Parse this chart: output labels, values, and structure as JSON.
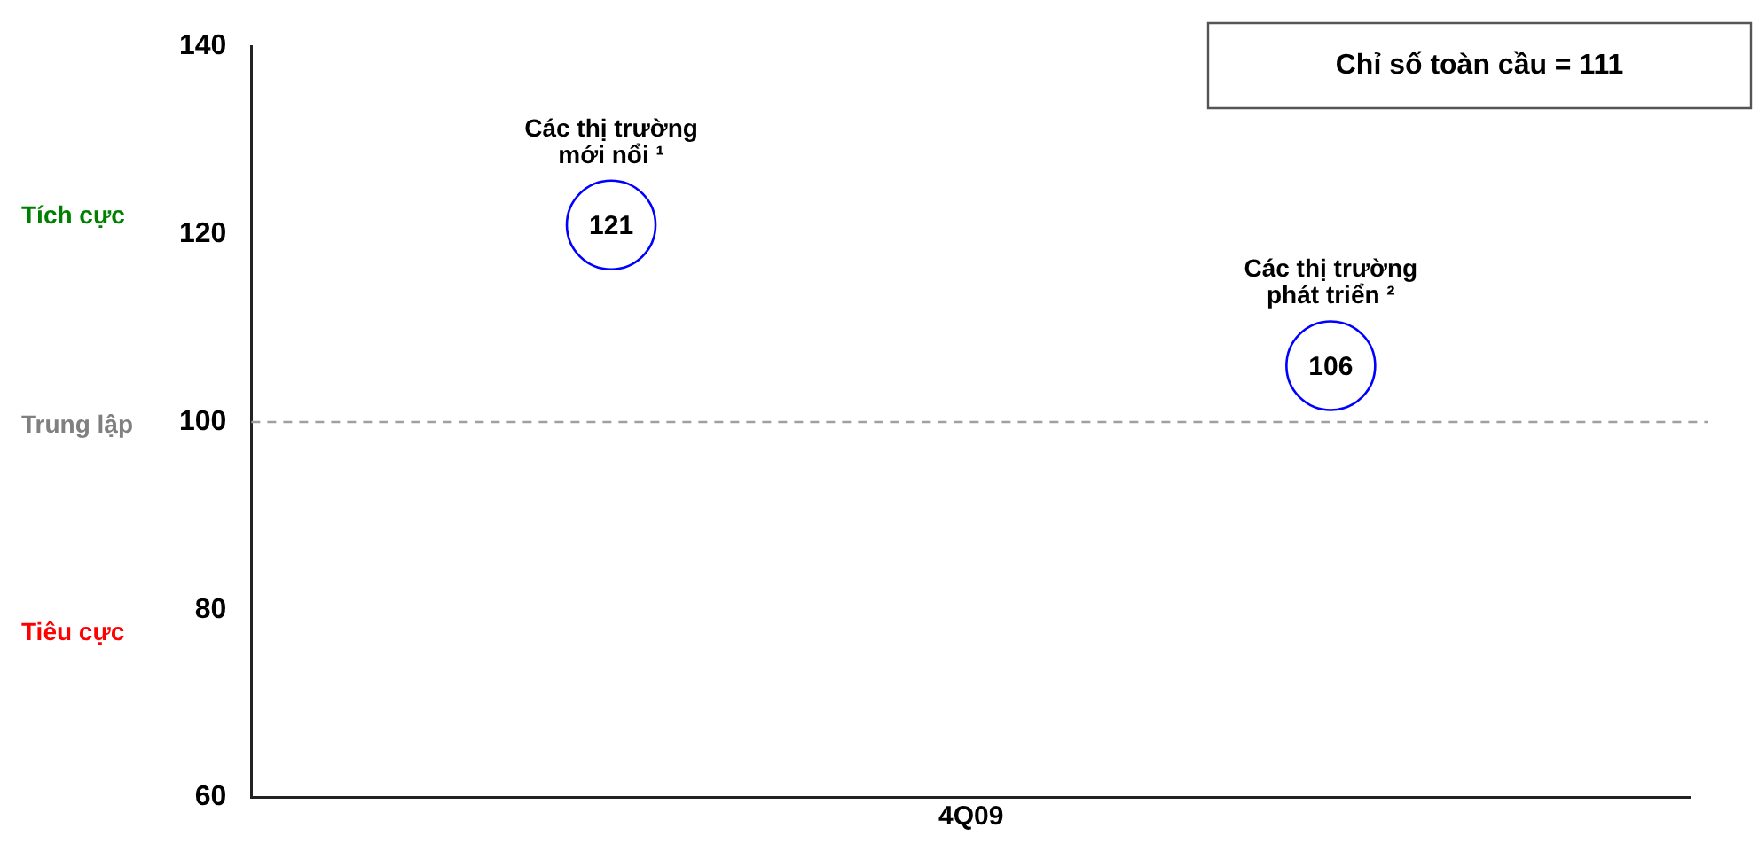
{
  "chart_data": {
    "type": "scatter",
    "xlabel": "4Q09",
    "categories": [
      null,
      null
    ],
    "series": [
      {
        "name": "Các thị trường mới nổi ¹",
        "color": "#0000ff",
        "values": [
          121,
          null
        ]
      },
      {
        "name": "Các thị trường phát triển ²",
        "color": "#0000ff",
        "values": [
          null,
          106
        ]
      }
    ],
    "ylim": [
      60,
      140
    ],
    "yticks": [
      60,
      80,
      100,
      120,
      140
    ],
    "grid": false,
    "legend": false,
    "marker": "circle",
    "data_labels": true,
    "tick_labels": "y",
    "ref_lines": [
      {
        "axis": "y",
        "value": 100,
        "color": "#a0a0a0",
        "line_style": "dashed"
      }
    ],
    "annotations": [
      "Chỉ số toàn cầu = 111",
      "Tích cực",
      "Trung lập",
      "Tiêu cực"
    ]
  }
}
